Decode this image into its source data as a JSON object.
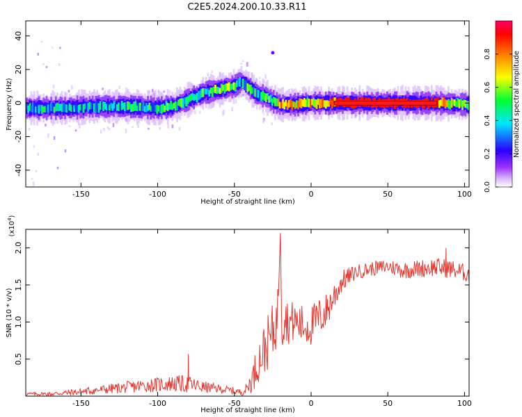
{
  "title": "C2E5.2024.200.10.33.R11",
  "chart_data": [
    {
      "type": "heatmap",
      "xlabel": "Height of straight line (km)",
      "ylabel": "Frequency (Hz)",
      "xlim": [
        -186,
        103
      ],
      "ylim": [
        -50,
        49
      ],
      "xticks": [
        -150,
        -100,
        -50,
        0,
        50,
        100
      ],
      "yticks": [
        -40,
        -20,
        0,
        20,
        40
      ],
      "colorbar": {
        "label": "Normalized spectral amplitude",
        "range": [
          0,
          1
        ],
        "ticks": [
          0.0,
          0.2,
          0.4,
          0.6,
          0.8
        ],
        "colors": [
          "#ffffff",
          "#c299ff",
          "#7a00ff",
          "#0000ff",
          "#00ffff",
          "#00ff00",
          "#ffff00",
          "#ff8c00",
          "#ff0000",
          "#ff0066"
        ]
      },
      "ridge": {
        "name": "dominant frequency track",
        "x": [
          -186,
          -160,
          -140,
          -120,
          -100,
          -90,
          -80,
          -70,
          -60,
          -50,
          -45,
          -40,
          -35,
          -30,
          -25,
          -20,
          -10,
          0,
          20,
          50,
          80,
          103
        ],
        "y": [
          -3,
          -3,
          -2,
          -2,
          -3,
          -2,
          2,
          6,
          8,
          10,
          13,
          9,
          5,
          4,
          1,
          -1,
          -1,
          0,
          0,
          0,
          0,
          -1
        ],
        "amplitude": [
          0.45,
          0.5,
          0.45,
          0.5,
          0.5,
          0.55,
          0.55,
          0.6,
          0.6,
          0.6,
          0.5,
          0.55,
          0.5,
          0.55,
          0.6,
          0.8,
          0.75,
          0.8,
          0.95,
          0.95,
          0.95,
          0.6
        ]
      },
      "isolated_spot": {
        "x": -25,
        "y": 30
      }
    },
    {
      "type": "line",
      "xlabel": "Height of straight line (km)",
      "ylabel": "SNR (10 * v/v)",
      "y_multiplier": "(x10",
      "y_multiplier_exponent": "4",
      "y_multiplier_close": ")",
      "xlim": [
        -186,
        103
      ],
      "ylim": [
        0,
        2.25
      ],
      "xticks": [
        -150,
        -100,
        -50,
        0,
        50,
        100
      ],
      "yticks": [
        0.5,
        1.0,
        1.5,
        2.0
      ],
      "ytick_labels": [
        "0.5",
        "1.0",
        "1.5",
        "2.0"
      ],
      "series": [
        {
          "name": "SNR",
          "color": "#e8322a",
          "x": [
            -186,
            -170,
            -150,
            -130,
            -110,
            -90,
            -80,
            -70,
            -60,
            -50,
            -45,
            -42,
            -38,
            -35,
            -30,
            -25,
            -22,
            -20,
            -19,
            -17,
            -15,
            -10,
            -5,
            0,
            5,
            10,
            15,
            20,
            25,
            30,
            40,
            50,
            60,
            70,
            80,
            90,
            103
          ],
          "y": [
            0.03,
            0.03,
            0.06,
            0.1,
            0.14,
            0.17,
            0.16,
            0.12,
            0.1,
            0.07,
            0.05,
            0.1,
            0.25,
            0.45,
            0.65,
            0.85,
            1.05,
            2.2,
            0.9,
            1.1,
            1.0,
            1.0,
            0.95,
            0.95,
            1.05,
            1.15,
            1.35,
            1.55,
            1.62,
            1.68,
            1.72,
            1.75,
            1.7,
            1.72,
            1.74,
            1.72,
            1.65
          ],
          "noise": [
            0.02,
            0.03,
            0.05,
            0.07,
            0.09,
            0.11,
            0.12,
            0.08,
            0.06,
            0.05,
            0.04,
            0.08,
            0.2,
            0.28,
            0.35,
            0.4,
            0.35,
            0.0,
            0.3,
            0.3,
            0.3,
            0.28,
            0.28,
            0.28,
            0.28,
            0.25,
            0.22,
            0.15,
            0.12,
            0.1,
            0.1,
            0.1,
            0.12,
            0.12,
            0.13,
            0.13,
            0.12
          ],
          "peaks": [
            {
              "x": -80,
              "y": 0.57
            },
            {
              "x": -20,
              "y": 2.2
            },
            {
              "x": 88,
              "y": 2.0
            }
          ]
        }
      ]
    }
  ]
}
